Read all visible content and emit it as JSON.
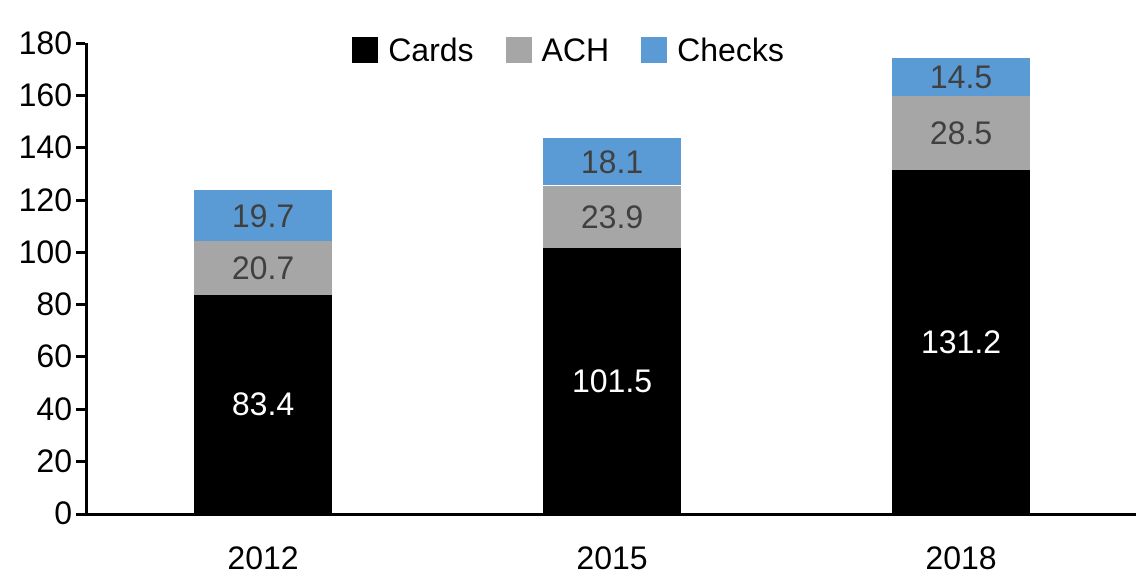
{
  "chart_data": {
    "type": "bar",
    "stacked": true,
    "title": "",
    "xlabel": "",
    "ylabel": "",
    "categories": [
      "2012",
      "2015",
      "2018"
    ],
    "series": [
      {
        "name": "Cards",
        "color": "#000000",
        "label_color": "#ffffff",
        "values": [
          83.4,
          101.5,
          131.2
        ]
      },
      {
        "name": "ACH",
        "color": "#a6a6a6",
        "label_color": "#404040",
        "values": [
          20.7,
          23.9,
          28.5
        ]
      },
      {
        "name": "Checks",
        "color": "#5b9bd5",
        "label_color": "#404040",
        "values": [
          19.7,
          18.1,
          14.5
        ]
      }
    ],
    "y_axis": {
      "min": 0,
      "max": 180,
      "step": 20,
      "ticks": [
        0,
        20,
        40,
        60,
        80,
        100,
        120,
        140,
        160,
        180
      ]
    },
    "legend": {
      "position": "top",
      "entries": [
        "Cards",
        "ACH",
        "Checks"
      ]
    },
    "grid": false,
    "axis_color": "#000000",
    "value_label_decimals": 1
  }
}
